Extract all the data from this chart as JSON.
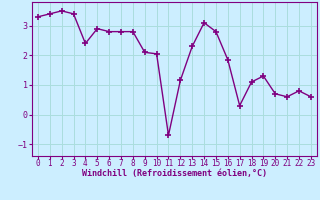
{
  "x": [
    0,
    1,
    2,
    3,
    4,
    5,
    6,
    7,
    8,
    9,
    10,
    11,
    12,
    13,
    14,
    15,
    16,
    17,
    18,
    19,
    20,
    21,
    22,
    23
  ],
  "y": [
    3.3,
    3.4,
    3.5,
    3.4,
    2.4,
    2.9,
    2.8,
    2.8,
    2.8,
    2.1,
    2.05,
    -0.7,
    1.15,
    2.3,
    3.1,
    2.8,
    1.85,
    0.3,
    1.1,
    1.3,
    0.7,
    0.6,
    0.8,
    0.6
  ],
  "color": "#800080",
  "bg_color": "#cceeff",
  "xlabel": "Windchill (Refroidissement éolien,°C)",
  "ylim": [
    -1.4,
    3.8
  ],
  "xlim": [
    -0.5,
    23.5
  ],
  "yticks": [
    -1,
    0,
    1,
    2,
    3
  ],
  "xticks": [
    0,
    1,
    2,
    3,
    4,
    5,
    6,
    7,
    8,
    9,
    10,
    11,
    12,
    13,
    14,
    15,
    16,
    17,
    18,
    19,
    20,
    21,
    22,
    23
  ],
  "grid_color": "#aadddd",
  "tick_color": "#800080",
  "label_color": "#800080",
  "marker": "+",
  "linewidth": 1.0,
  "markersize": 4,
  "markeredgewidth": 1.2,
  "tick_fontsize": 5.5,
  "xlabel_fontsize": 6.0
}
